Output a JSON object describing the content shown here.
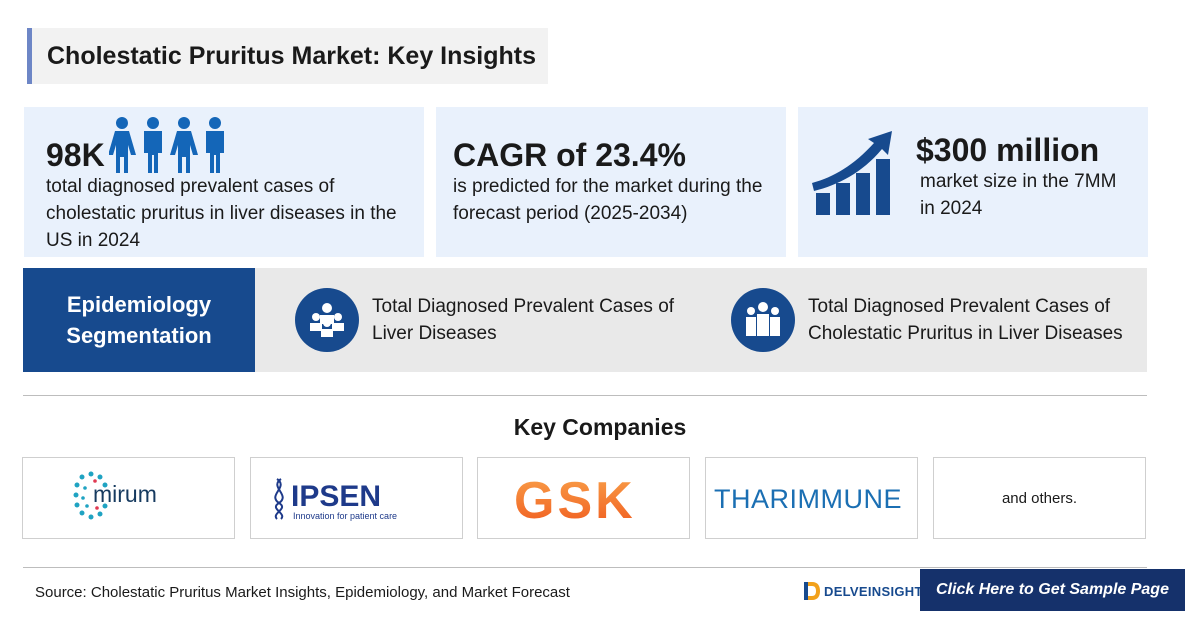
{
  "header": {
    "title": "Cholestatic Pruritus Market: Key Insights"
  },
  "cards": [
    {
      "highlight": "98K",
      "description": "total diagnosed prevalent cases of cholestatic pruritus in liver diseases in the US in 2024",
      "icon": "people-icon"
    },
    {
      "highlight": "CAGR of 23.4%",
      "description": "is predicted for the market during the forecast period (2025-2034)"
    },
    {
      "highlight": "$300 million",
      "description": "market size in the 7MM in 2024",
      "icon": "growth-chart-icon"
    }
  ],
  "epidemiology": {
    "label": "Epidemiology Segmentation",
    "items": [
      {
        "text": "Total Diagnosed Prevalent Cases of Liver Diseases",
        "icon": "group-icon"
      },
      {
        "text": "Total Diagnosed Prevalent Cases of Cholestatic Pruritus in Liver Diseases",
        "icon": "crowd-icon"
      }
    ]
  },
  "companies": {
    "title": "Key Companies",
    "logos": [
      {
        "name": "mirum"
      },
      {
        "name": "IPSEN",
        "tagline": "Innovation for patient care"
      },
      {
        "name": "GSK"
      },
      {
        "name": "THARIMMUNE"
      }
    ],
    "others": "and others."
  },
  "footer": {
    "source": "Source: Cholestatic Pruritus Market Insights, Epidemiology, and Market Forecast",
    "brand": "DELVEINSIGHT",
    "cta": "Click Here to Get Sample Page"
  },
  "colors": {
    "primary": "#174a8e",
    "card_bg": "#e9f1fc",
    "cta_bg": "#15316b",
    "mirum_dot": "#1fa3c2",
    "gsk_orange": "#f26d21"
  }
}
